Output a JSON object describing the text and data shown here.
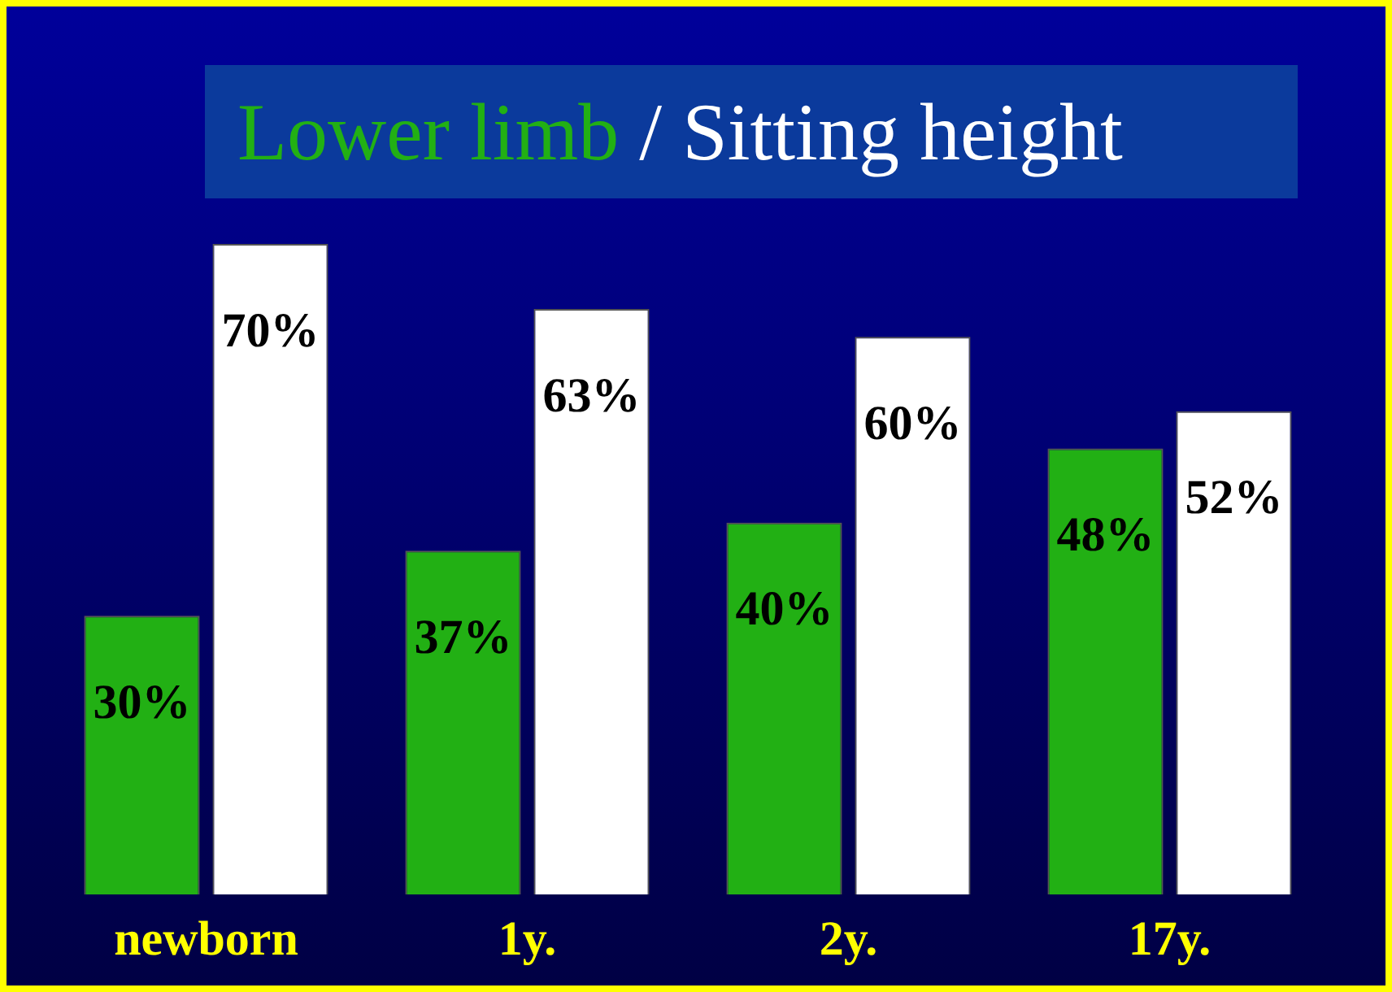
{
  "chart_data": {
    "type": "bar",
    "title": "Lower limb / Sitting height",
    "categories": [
      "newborn",
      "1y.",
      "2y.",
      "17y."
    ],
    "series": [
      {
        "color": "#22b014",
        "values": [
          30,
          37,
          40,
          48
        ],
        "value_labels": [
          "30%",
          "37%",
          "40%",
          "48%"
        ]
      },
      {
        "color": "#ffffff",
        "values": [
          70,
          63,
          60,
          52
        ],
        "value_labels": [
          "70%",
          "63%",
          "60%",
          "52%"
        ]
      }
    ],
    "legend": false,
    "grid": false
  }
}
